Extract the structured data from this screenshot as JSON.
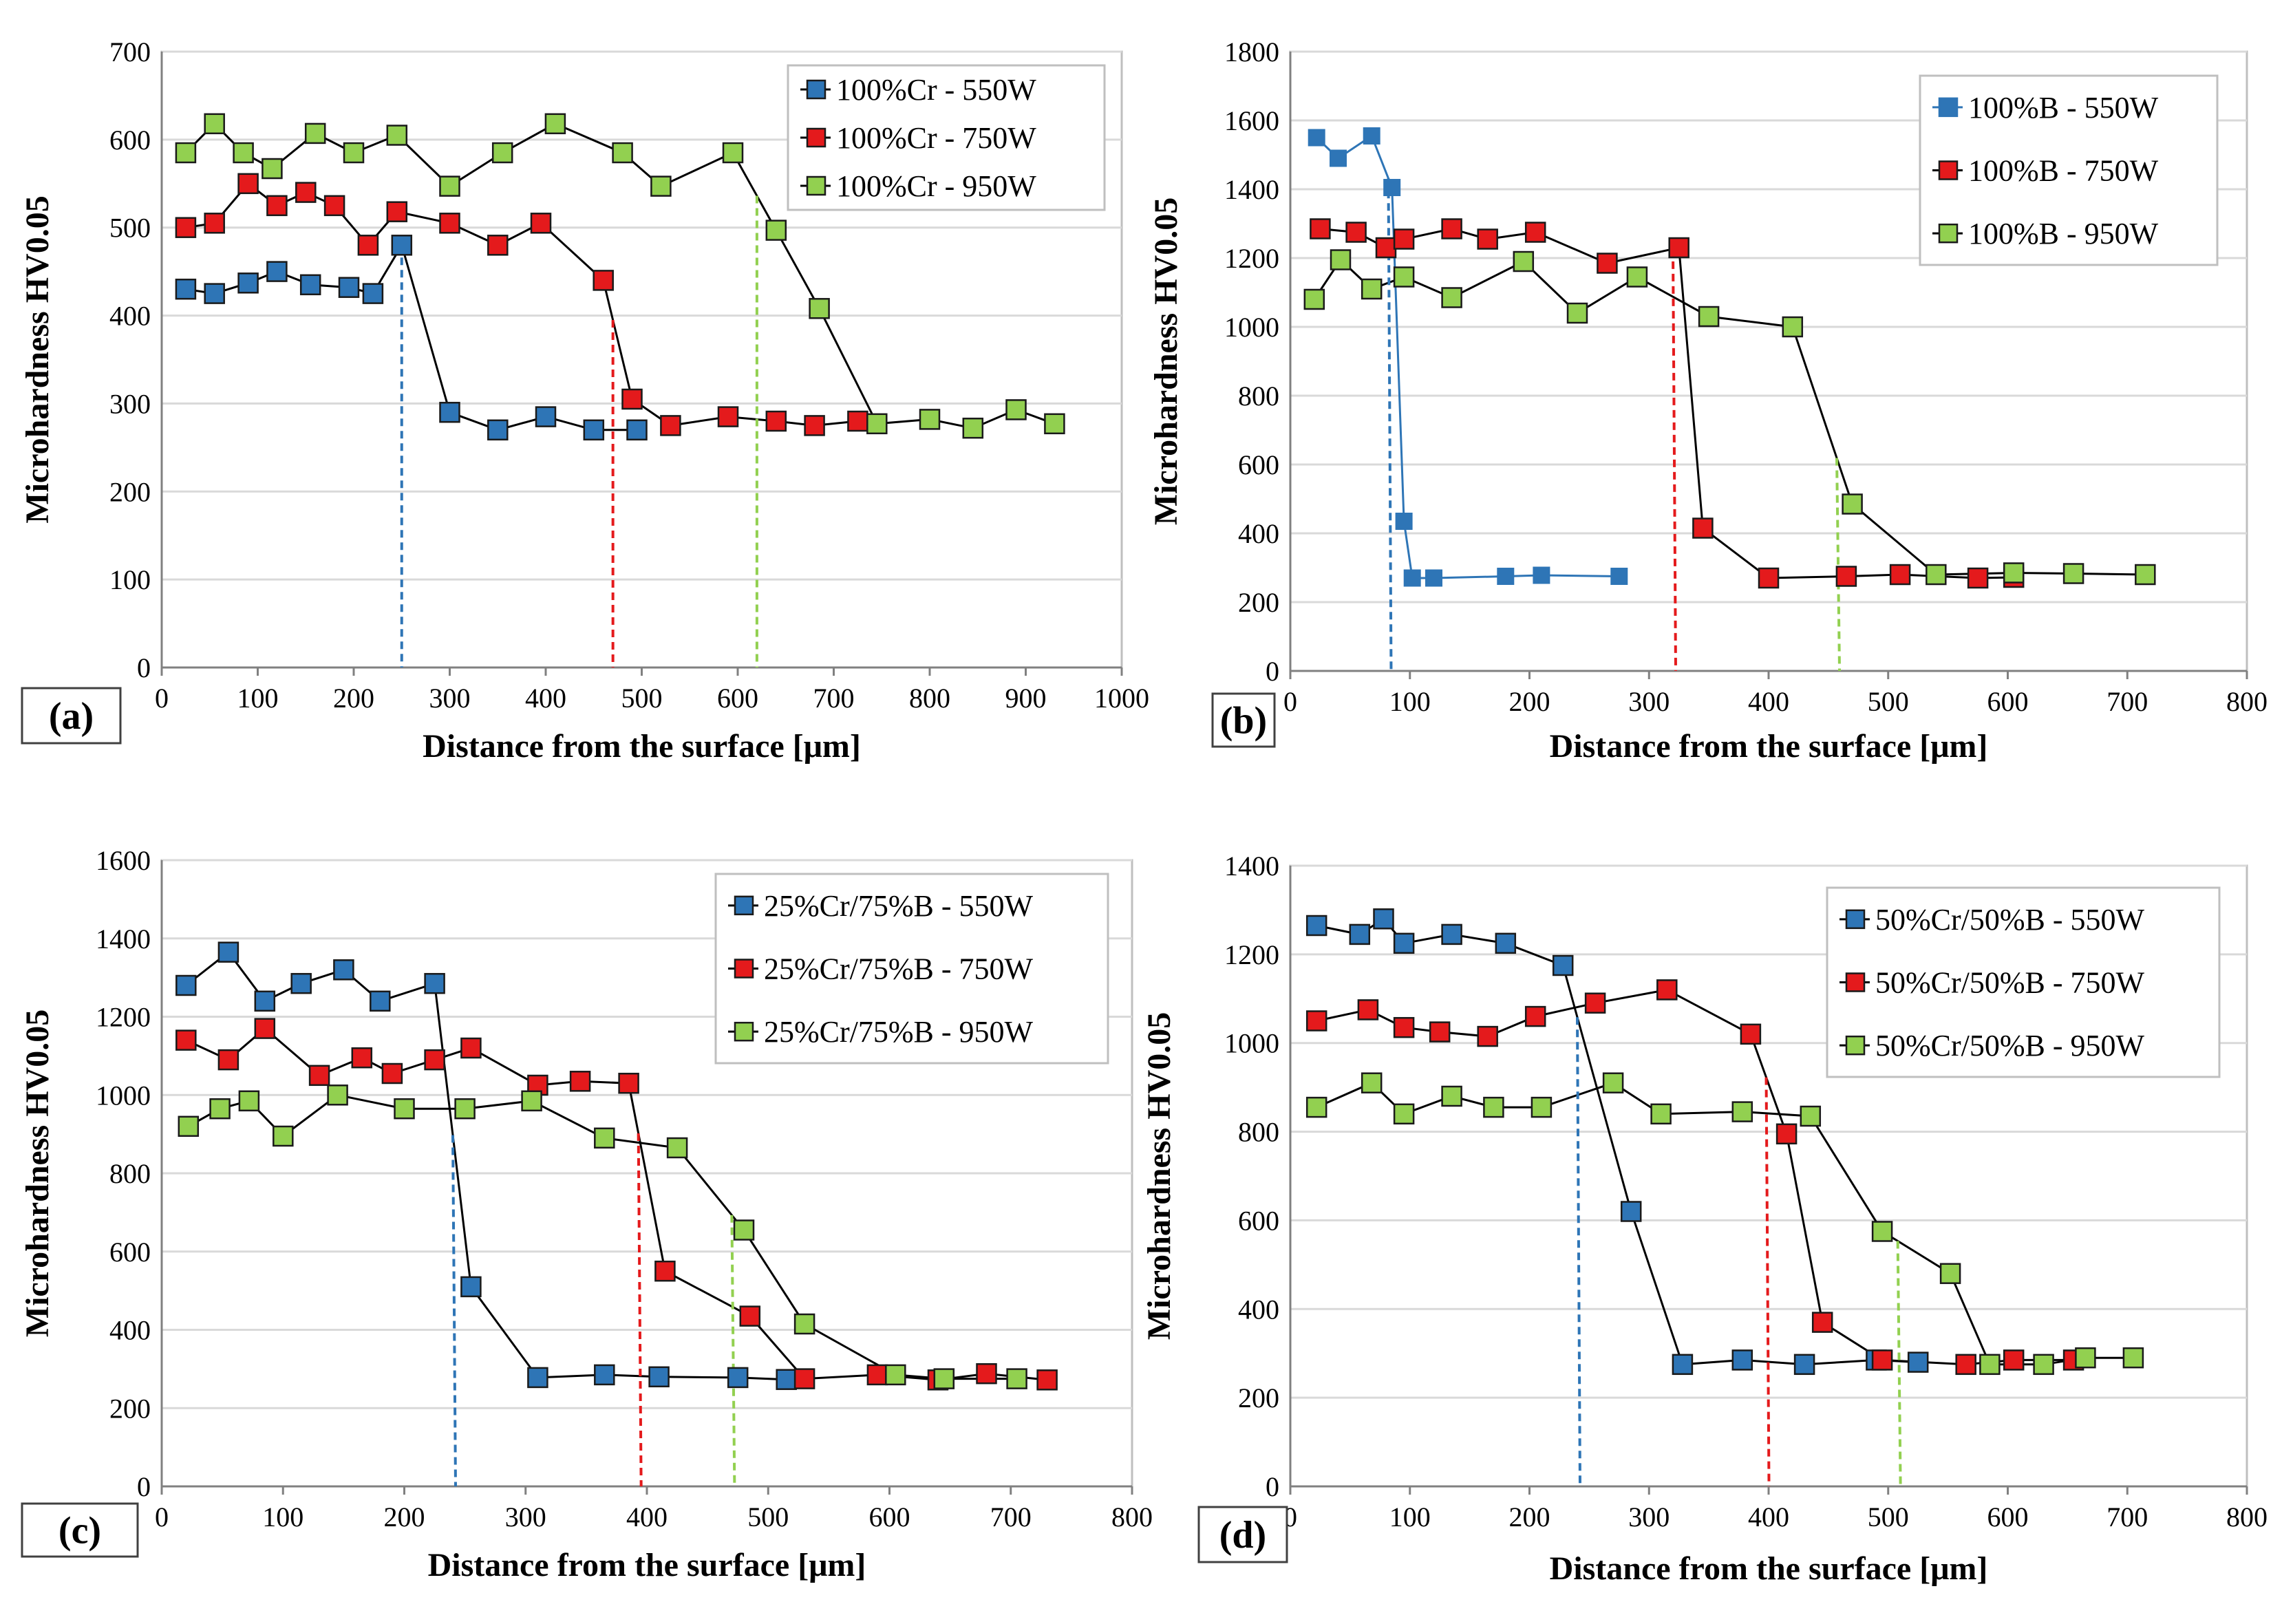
{
  "colors": {
    "series_550": "#2e75b6",
    "series_750": "#e41a1c",
    "series_950": "#92d050",
    "connector": "#000000",
    "grid": "#d9d9d9"
  },
  "chart_data": [
    {
      "type": "line",
      "panel_label": "(a)",
      "xlabel": "Distance from the surface [μm]",
      "ylabel": "Microhardness HV0.05",
      "xlim": [
        0,
        1000
      ],
      "ylim": [
        0,
        700
      ],
      "xticks": [
        0,
        100,
        200,
        300,
        400,
        500,
        600,
        700,
        800,
        900,
        1000
      ],
      "yticks": [
        0,
        100,
        200,
        300,
        400,
        500,
        600,
        700
      ],
      "grid": "horizontal",
      "legend_position": "top-right",
      "series": [
        {
          "name": "100%Cr - 550W",
          "color_key": "series_550",
          "connector": "black",
          "boundary": 250,
          "x": [
            25,
            55,
            90,
            120,
            155,
            195,
            220,
            250,
            300,
            350,
            400,
            450,
            495
          ],
          "y": [
            430,
            425,
            437,
            450,
            435,
            432,
            425,
            480,
            290,
            270,
            285,
            270,
            270
          ]
        },
        {
          "name": "100%Cr - 750W",
          "color_key": "series_750",
          "connector": "black",
          "boundary": 470,
          "x": [
            25,
            55,
            90,
            120,
            150,
            180,
            215,
            245,
            300,
            350,
            395,
            460,
            490,
            530,
            590,
            640,
            680,
            725
          ],
          "y": [
            500,
            505,
            550,
            525,
            540,
            525,
            480,
            518,
            505,
            480,
            505,
            440,
            305,
            275,
            285,
            280,
            275,
            280
          ]
        },
        {
          "name": "100%Cr - 950W",
          "color_key": "series_950",
          "connector": "black",
          "boundary": 620,
          "x": [
            25,
            55,
            85,
            115,
            160,
            200,
            245,
            300,
            355,
            410,
            480,
            520,
            595,
            640,
            685,
            745,
            800,
            845,
            890,
            930
          ],
          "y": [
            585,
            618,
            585,
            567,
            607,
            585,
            605,
            547,
            585,
            618,
            585,
            547,
            585,
            497,
            408,
            277,
            282,
            272,
            293,
            277
          ]
        }
      ]
    },
    {
      "type": "line",
      "panel_label": "(b)",
      "xlabel": "Distance from the surface [μm]",
      "ylabel": "Microhardness HV0.05",
      "xlim": [
        0,
        800
      ],
      "ylim": [
        0,
        1800
      ],
      "xticks": [
        0,
        100,
        200,
        300,
        400,
        500,
        600,
        700,
        800
      ],
      "yticks": [
        0,
        200,
        400,
        600,
        800,
        1000,
        1200,
        1400,
        1600,
        1800
      ],
      "grid": "horizontal",
      "legend_position": "top-right",
      "series": [
        {
          "name": "100%B - 550W",
          "color_key": "series_550",
          "connector": "blue",
          "boundary": 82,
          "x": [
            22,
            40,
            68,
            85,
            95,
            102,
            120,
            180,
            210,
            275
          ],
          "y": [
            1550,
            1490,
            1555,
            1405,
            435,
            270,
            270,
            275,
            278,
            275
          ]
        },
        {
          "name": "100%B - 750W",
          "color_key": "series_750",
          "connector": "black",
          "boundary": 320,
          "x": [
            25,
            55,
            80,
            95,
            135,
            165,
            205,
            265,
            325,
            345,
            400,
            465,
            510,
            575,
            605
          ],
          "y": [
            1285,
            1275,
            1230,
            1255,
            1285,
            1255,
            1275,
            1185,
            1230,
            415,
            270,
            275,
            280,
            270,
            272
          ]
        },
        {
          "name": "100%B - 950W",
          "color_key": "series_950",
          "connector": "black",
          "boundary": 457,
          "x": [
            20,
            42,
            68,
            95,
            135,
            195,
            240,
            290,
            350,
            420,
            470,
            540,
            605,
            655,
            715
          ],
          "y": [
            1080,
            1195,
            1110,
            1145,
            1085,
            1190,
            1040,
            1145,
            1030,
            1000,
            485,
            280,
            285,
            283,
            280
          ]
        }
      ]
    },
    {
      "type": "line",
      "panel_label": "(c)",
      "xlabel": "Distance from the surface [μm]",
      "ylabel": "Microhardness HV0.05",
      "xlim": [
        0,
        800
      ],
      "ylim": [
        0,
        1600
      ],
      "xticks": [
        0,
        100,
        200,
        300,
        400,
        500,
        600,
        700,
        800
      ],
      "yticks": [
        0,
        200,
        400,
        600,
        800,
        1000,
        1200,
        1400,
        1600
      ],
      "grid": "horizontal",
      "legend_position": "top-right",
      "series": [
        {
          "name": "25%Cr/75%B - 550W",
          "color_key": "series_550",
          "connector": "black",
          "boundary": 240,
          "x": [
            20,
            55,
            85,
            115,
            150,
            180,
            225,
            255,
            310,
            365,
            410,
            475,
            515
          ],
          "y": [
            1280,
            1365,
            1240,
            1285,
            1320,
            1240,
            1285,
            510,
            278,
            285,
            280,
            278,
            273
          ]
        },
        {
          "name": "25%Cr/75%B - 750W",
          "color_key": "series_750",
          "connector": "black",
          "boundary": 393,
          "x": [
            20,
            55,
            85,
            130,
            165,
            190,
            225,
            255,
            310,
            345,
            385,
            415,
            485,
            530,
            590,
            640,
            680,
            730
          ],
          "y": [
            1140,
            1090,
            1170,
            1050,
            1095,
            1055,
            1090,
            1120,
            1025,
            1035,
            1030,
            550,
            435,
            275,
            285,
            272,
            288,
            272
          ]
        },
        {
          "name": "25%Cr/75%B - 950W",
          "color_key": "series_950",
          "connector": "black",
          "boundary": 470,
          "x": [
            22,
            48,
            72,
            100,
            145,
            200,
            250,
            305,
            365,
            425,
            480,
            530,
            605,
            645,
            705
          ],
          "y": [
            920,
            965,
            985,
            895,
            1000,
            965,
            965,
            985,
            890,
            865,
            655,
            415,
            285,
            275,
            275
          ]
        }
      ]
    },
    {
      "type": "line",
      "panel_label": "(d)",
      "xlabel": "Distance from the surface [μm]",
      "ylabel": "Microhardness HV0.05",
      "xlim": [
        0,
        800
      ],
      "ylim": [
        0,
        1400
      ],
      "xticks": [
        0,
        100,
        200,
        300,
        400,
        500,
        600,
        700,
        800
      ],
      "yticks": [
        0,
        200,
        400,
        600,
        800,
        1000,
        1200,
        1400
      ],
      "grid": "horizontal",
      "legend_position": "top-right",
      "series": [
        {
          "name": "50%Cr/50%B - 550W",
          "color_key": "series_550",
          "connector": "black",
          "boundary": 240,
          "x": [
            22,
            58,
            78,
            95,
            135,
            180,
            228,
            285,
            328,
            378,
            430,
            490,
            525
          ],
          "y": [
            1265,
            1245,
            1280,
            1225,
            1245,
            1225,
            1175,
            620,
            275,
            285,
            275,
            285,
            280
          ]
        },
        {
          "name": "50%Cr/50%B - 750W",
          "color_key": "series_750",
          "connector": "black",
          "boundary": 398,
          "x": [
            22,
            65,
            95,
            125,
            165,
            205,
            255,
            315,
            385,
            415,
            445,
            495,
            565,
            605,
            655
          ],
          "y": [
            1050,
            1075,
            1035,
            1025,
            1015,
            1060,
            1090,
            1120,
            1020,
            795,
            370,
            285,
            275,
            285,
            285
          ]
        },
        {
          "name": "50%Cr/50%B - 950W",
          "color_key": "series_950",
          "connector": "black",
          "boundary": 508,
          "x": [
            22,
            68,
            95,
            135,
            170,
            210,
            270,
            310,
            378,
            435,
            495,
            552,
            585,
            630,
            665,
            705
          ],
          "y": [
            855,
            910,
            840,
            880,
            855,
            855,
            910,
            840,
            845,
            835,
            575,
            480,
            275,
            275,
            290,
            290
          ]
        }
      ]
    }
  ]
}
